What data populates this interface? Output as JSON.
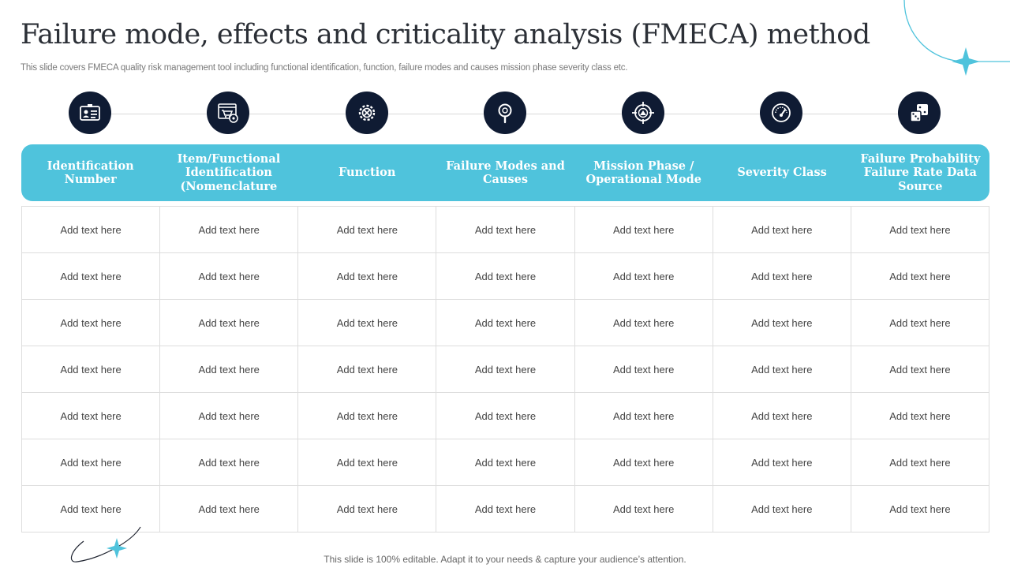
{
  "slide": {
    "title": "Failure mode, effects and criticality analysis (FMECA) method",
    "subtitle": "This slide covers FMECA  quality risk management tool including functional identification, function, failure modes and causes mission phase severity class etc.",
    "footer": "This slide is 100% editable. Adapt it to your needs & capture your audience’s attention."
  },
  "icons": [
    "id-card-icon",
    "cart-gear-icon",
    "gear-tools-icon",
    "magnifier-icon",
    "target-icon",
    "gauge-icon",
    "dice-icon"
  ],
  "columns": [
    "Identification Number",
    "Item/Functional Identification (Nomenclature",
    "Function",
    "Failure Modes and Causes",
    "Mission Phase / Operational Mode",
    "Severity Class",
    "Failure Probability Failure Rate Data Source"
  ],
  "rows": [
    [
      "Add text here",
      "Add text here",
      "Add text here",
      "Add text here",
      "Add text here",
      "Add text here",
      "Add text here"
    ],
    [
      "Add text here",
      "Add text here",
      "Add text here",
      "Add text here",
      "Add text here",
      "Add text here",
      "Add text here"
    ],
    [
      "Add text here",
      "Add text here",
      "Add text here",
      "Add text here",
      "Add text here",
      "Add text here",
      "Add text here"
    ],
    [
      "Add text here",
      "Add text here",
      "Add text here",
      "Add text here",
      "Add text here",
      "Add text here",
      "Add text here"
    ],
    [
      "Add text here",
      "Add text here",
      "Add text here",
      "Add text here",
      "Add text here",
      "Add text here",
      "Add text here"
    ],
    [
      "Add text here",
      "Add text here",
      "Add text here",
      "Add text here",
      "Add text here",
      "Add text here",
      "Add text here"
    ],
    [
      "Add text here",
      "Add text here",
      "Add text here",
      "Add text here",
      "Add text here",
      "Add text here",
      "Add text here"
    ]
  ],
  "colors": {
    "header": "#4fc3dc",
    "icon_bg": "#0f1b33",
    "accent": "#4fc3dc"
  }
}
